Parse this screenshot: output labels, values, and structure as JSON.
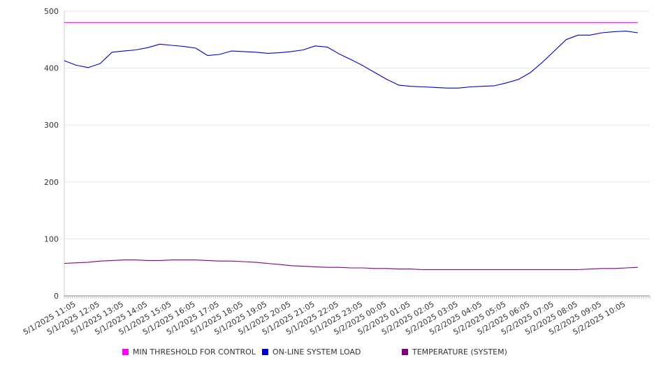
{
  "chart_data": {
    "type": "line",
    "title": "",
    "xlabel": "",
    "ylabel": "",
    "ylim": [
      0,
      500
    ],
    "yticks": [
      0,
      100,
      200,
      300,
      400,
      500
    ],
    "grid": true,
    "legend_position": "bottom",
    "x_tick_labels": [
      "5/1/2025 11:05",
      "5/1/2025 12:05",
      "5/1/2025 13:05",
      "5/1/2025 14:05",
      "5/1/2025 15:05",
      "5/1/2025 16:05",
      "5/1/2025 17:05",
      "5/1/2025 18:05",
      "5/1/2025 19:05",
      "5/1/2025 20:05",
      "5/1/2025 21:05",
      "5/1/2025 22:05",
      "5/1/2025 23:05",
      "5/2/2025 00:05",
      "5/2/2025 01:05",
      "5/2/2025 02:05",
      "5/2/2025 03:05",
      "5/2/2025 04:05",
      "5/2/2025 05:05",
      "5/2/2025 06:05",
      "5/2/2025 07:05",
      "5/2/2025 08:05",
      "5/2/2025 09:05",
      "5/2/2025 10:05"
    ],
    "x_hours": [
      0,
      0.5,
      1,
      1.5,
      2,
      2.5,
      3,
      3.5,
      4,
      4.5,
      5,
      5.5,
      6,
      6.5,
      7,
      7.5,
      8,
      8.5,
      9,
      9.5,
      10,
      10.5,
      11,
      11.5,
      12,
      12.5,
      13,
      13.5,
      14,
      14.5,
      15,
      15.5,
      16,
      16.5,
      17,
      17.5,
      18,
      18.5,
      19,
      19.5,
      20,
      20.5,
      21,
      21.5,
      22,
      22.5,
      23,
      23.5,
      24
    ],
    "x_max_hours": 24.5,
    "series": [
      {
        "name": "MIN THRESHOLD FOR CONTROL",
        "color": "#ff00ff",
        "values": [
          480,
          480,
          480,
          480,
          480,
          480,
          480,
          480,
          480,
          480,
          480,
          480,
          480,
          480,
          480,
          480,
          480,
          480,
          480,
          480,
          480,
          480,
          480,
          480,
          480,
          480,
          480,
          480,
          480,
          480,
          480,
          480,
          480,
          480,
          480,
          480,
          480,
          480,
          480,
          480,
          480,
          480,
          480,
          480,
          480,
          480,
          480,
          480,
          480
        ]
      },
      {
        "name": "ON-LINE SYSTEM LOAD",
        "color": "#0000cc",
        "values": [
          413,
          405,
          401,
          408,
          428,
          430,
          432,
          436,
          442,
          440,
          438,
          435,
          422,
          424,
          430,
          429,
          428,
          426,
          427,
          429,
          432,
          439,
          437,
          425,
          415,
          404,
          392,
          380,
          370,
          368,
          367,
          366,
          365,
          365,
          367,
          368,
          369,
          374,
          380,
          392,
          410,
          430,
          450,
          458,
          458,
          462,
          464,
          465,
          462
        ]
      },
      {
        "name": "TEMPERATURE (SYSTEM)",
        "color": "#800080",
        "values": [
          57,
          58,
          59,
          61,
          62,
          63,
          63,
          62,
          62,
          63,
          63,
          63,
          62,
          61,
          61,
          60,
          59,
          57,
          55,
          53,
          52,
          51,
          50,
          50,
          49,
          49,
          48,
          48,
          47,
          47,
          46,
          46,
          46,
          46,
          46,
          46,
          46,
          46,
          46,
          46,
          46,
          46,
          46,
          46,
          47,
          48,
          48,
          49,
          50
        ]
      }
    ]
  }
}
